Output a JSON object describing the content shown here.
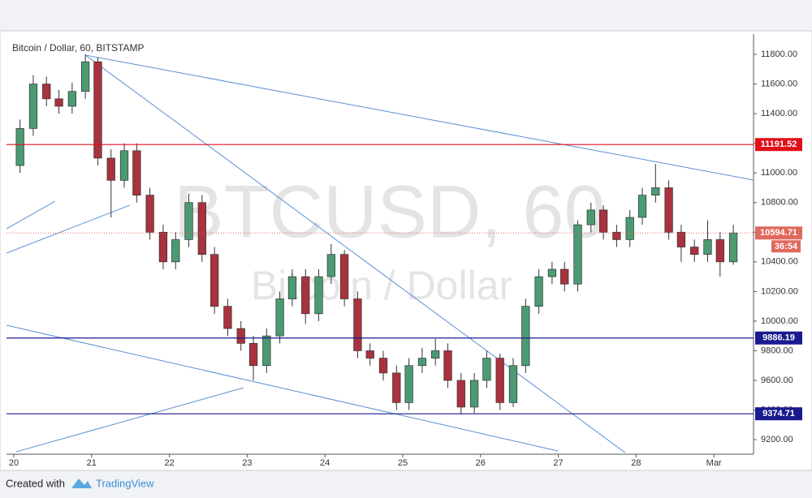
{
  "chart_data": {
    "type": "candlestick",
    "title": "Bitcoin / Dollar, 60, BITSTAMP",
    "watermark": "BTCUSD, 60",
    "watermark_subtitle": "Bitcoin / Dollar",
    "up_color": "#4c9a72",
    "down_color": "#a8323e",
    "x": [
      0.08,
      0.25,
      0.42,
      0.58,
      0.75,
      0.92,
      1.08,
      1.25,
      1.42,
      1.58,
      1.75,
      1.92,
      2.08,
      2.25,
      2.42,
      2.58,
      2.75,
      2.92,
      3.08,
      3.25,
      3.42,
      3.58,
      3.75,
      3.92,
      4.08,
      4.25,
      4.42,
      4.58,
      4.75,
      4.92,
      5.08,
      5.25,
      5.42,
      5.58,
      5.75,
      5.92,
      6.08,
      6.25,
      6.42,
      6.58,
      6.75,
      6.92,
      7.08,
      7.25,
      7.42,
      7.58,
      7.75,
      7.92,
      8.08,
      8.25,
      8.42,
      8.58,
      8.75,
      8.92,
      9.08,
      9.25
    ],
    "open": [
      11050,
      11300,
      11600,
      11500,
      11450,
      11550,
      11750,
      11100,
      10950,
      11150,
      10850,
      10600,
      10400,
      10550,
      10800,
      10450,
      10100,
      9950,
      9850,
      9700,
      9900,
      10150,
      10300,
      10050,
      10300,
      10450,
      10150,
      9800,
      9750,
      9650,
      9450,
      9700,
      9750,
      9800,
      9600,
      9420,
      9600,
      9750,
      9450,
      9700,
      10100,
      10300,
      10350,
      10250,
      10650,
      10750,
      10600,
      10550,
      10700,
      10850,
      10900,
      10600,
      10500,
      10450,
      10550,
      10400
    ],
    "high": [
      11360,
      11660,
      11650,
      11560,
      11610,
      11800,
      11780,
      11160,
      11200,
      11200,
      10900,
      10650,
      10600,
      10860,
      10850,
      10500,
      10150,
      10000,
      9900,
      9950,
      10200,
      10350,
      10350,
      10350,
      10520,
      10480,
      10200,
      9850,
      9800,
      9700,
      9750,
      9820,
      9880,
      9850,
      9650,
      9650,
      9800,
      9780,
      9750,
      10150,
      10350,
      10400,
      10400,
      10680,
      10800,
      10780,
      10650,
      10750,
      10900,
      11060,
      10950,
      10650,
      10550,
      10680,
      10600,
      10650
    ],
    "low": [
      11000,
      11250,
      11450,
      11400,
      11400,
      11500,
      11050,
      10700,
      10900,
      10800,
      10550,
      10350,
      10350,
      10500,
      10400,
      10050,
      9900,
      9800,
      9600,
      9650,
      9850,
      10100,
      9980,
      10000,
      10250,
      10100,
      9750,
      9700,
      9600,
      9400,
      9400,
      9650,
      9700,
      9550,
      9370,
      9380,
      9550,
      9400,
      9420,
      9650,
      10050,
      10250,
      10200,
      10200,
      10600,
      10550,
      10500,
      10500,
      10650,
      10800,
      10550,
      10400,
      10400,
      10400,
      10300,
      10380
    ],
    "close": [
      11300,
      11600,
      11500,
      11450,
      11550,
      11750,
      11100,
      10950,
      11150,
      10850,
      10600,
      10400,
      10550,
      10800,
      10450,
      10100,
      9950,
      9850,
      9700,
      9900,
      10150,
      10300,
      10050,
      10300,
      10450,
      10150,
      9800,
      9750,
      9650,
      9450,
      9700,
      9750,
      9800,
      9600,
      9420,
      9600,
      9750,
      9450,
      9700,
      10100,
      10300,
      10350,
      10250,
      10650,
      10750,
      10600,
      10550,
      10700,
      10850,
      10900,
      10600,
      10500,
      10450,
      10550,
      10400,
      10595
    ],
    "xlim": [
      -0.094,
      9.51
    ],
    "xticks": [
      {
        "value": 0,
        "label": "20"
      },
      {
        "value": 1,
        "label": "21"
      },
      {
        "value": 2,
        "label": "22"
      },
      {
        "value": 3,
        "label": "23"
      },
      {
        "value": 4,
        "label": "24"
      },
      {
        "value": 5,
        "label": "25"
      },
      {
        "value": 6,
        "label": "26"
      },
      {
        "value": 7,
        "label": "27"
      },
      {
        "value": 8,
        "label": "28"
      },
      {
        "value": 9,
        "label": "Mar"
      }
    ],
    "ylim": [
      9102,
      11937
    ],
    "yticks": [
      {
        "value": 9200,
        "label": "9200.00"
      },
      {
        "value": 9400,
        "label": "9400.00"
      },
      {
        "value": 9600,
        "label": "9600.00"
      },
      {
        "value": 9800,
        "label": "9800.00"
      },
      {
        "value": 10000,
        "label": "10000.00"
      },
      {
        "value": 10200,
        "label": "10200.00"
      },
      {
        "value": 10400,
        "label": "10400.00"
      },
      {
        "value": 10600,
        "label": "10600.00"
      },
      {
        "value": 10800,
        "label": "10800.00"
      },
      {
        "value": 11000,
        "label": "11000.00"
      },
      {
        "value": 11200,
        "label": "11200.00"
      },
      {
        "value": 11400,
        "label": "11400.00"
      },
      {
        "value": 11600,
        "label": "11600.00"
      },
      {
        "value": 11800,
        "label": "11800.00"
      }
    ],
    "levels": [
      {
        "value": 11191.52,
        "color": "#e0101a"
      },
      {
        "value": 9886.19,
        "color": "#1a1a90"
      },
      {
        "value": 9374.71,
        "color": "#1a1a90"
      }
    ],
    "last_price": 10594.71,
    "last_price_color": "#e0685c",
    "countdown": "36:54",
    "trend_line_color": "#5b8fd0",
    "trend_lines": [
      [
        0.92,
        11795,
        9.51,
        10952
      ],
      [
        0.92,
        11795,
        7.86,
        9112
      ],
      [
        -0.094,
        10459,
        1.49,
        10782
      ],
      [
        -0.094,
        10623,
        0.53,
        10809
      ],
      [
        -0.094,
        9972,
        7.0,
        9123
      ],
      [
        0.03,
        9118,
        2.95,
        9550
      ]
    ]
  },
  "footer": {
    "created_with": "Created with",
    "brand": "TradingView"
  }
}
